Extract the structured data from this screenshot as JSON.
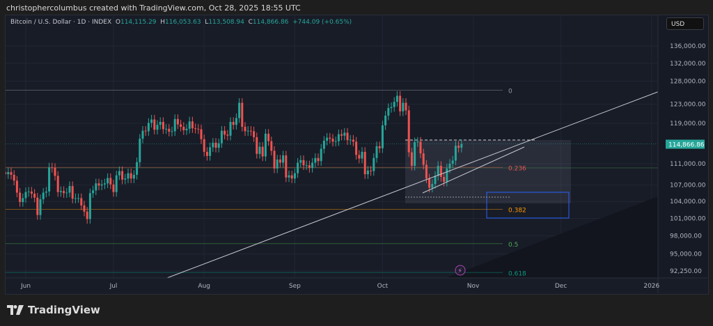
{
  "header": {
    "attribution": "christophercolumbus created with TradingView.com, Oct 28, 2025 18:55 UTC"
  },
  "legend": {
    "symbol": "Bitcoin / U.S. Dollar · 1D · INDEX",
    "open_label": "O",
    "open": "114,115.29",
    "high_label": "H",
    "high": "116,053.63",
    "low_label": "L",
    "low": "113,508.94",
    "close_label": "C",
    "close": "114,866.86",
    "change": "+744.09 (+0.65%)"
  },
  "currency_button": "USD",
  "footer": {
    "brand": "TradingView"
  },
  "colors": {
    "up": "#26a69a",
    "down": "#ef5350",
    "background": "#181c27",
    "price_tag": "#26a69a"
  },
  "chart_data": {
    "type": "candlestick",
    "y_scale": "log",
    "ylim": [
      92250,
      136000
    ],
    "y_ticks": [
      "136,000.00",
      "132,000.00",
      "128,000.00",
      "123,000.00",
      "119,000.00",
      "111,000.00",
      "107,000.00",
      "104,000.00",
      "101,000.00",
      "98,000.00",
      "95,000.00",
      "92,250.00"
    ],
    "y_tick_values": [
      136000,
      132000,
      128000,
      123000,
      119000,
      111000,
      107000,
      104000,
      101000,
      98000,
      95000,
      92250
    ],
    "x_ticks": [
      "Jun",
      "Jul",
      "Aug",
      "Sep",
      "Oct",
      "Nov",
      "Dec",
      "2026"
    ],
    "x_tick_dates": [
      "2025-06-01",
      "2025-07-01",
      "2025-08-01",
      "2025-09-01",
      "2025-10-01",
      "2025-11-01",
      "2025-12-01",
      "2026-01-01"
    ],
    "xlim": [
      "2025-05-24",
      "2026-01-03"
    ],
    "start_date": "2025-05-25",
    "closes": [
      109.0,
      109.4,
      108.9,
      107.8,
      105.6,
      103.9,
      104.6,
      105.7,
      105.8,
      105.4,
      104.7,
      101.6,
      104.4,
      105.6,
      105.8,
      110.3,
      110.2,
      108.7,
      105.7,
      105.9,
      105.5,
      105.6,
      106.8,
      104.5,
      104.6,
      104.6,
      103.3,
      102.2,
      100.9,
      105.5,
      106.0,
      107.3,
      106.9,
      107.1,
      107.3,
      108.3,
      107.1,
      105.7,
      108.8,
      109.6,
      108.0,
      108.2,
      109.2,
      108.2,
      108.9,
      111.3,
      115.9,
      117.5,
      117.4,
      119.1,
      119.8,
      117.7,
      118.7,
      119.3,
      117.8,
      117.9,
      117.3,
      117.4,
      119.9,
      118.8,
      118.3,
      117.6,
      117.9,
      119.4,
      118.0,
      117.9,
      117.8,
      115.8,
      113.3,
      112.5,
      114.2,
      115.1,
      114.1,
      115.0,
      117.5,
      116.7,
      116.5,
      119.3,
      118.7,
      120.1,
      123.3,
      118.3,
      117.4,
      117.5,
      117.4,
      116.2,
      112.9,
      114.3,
      112.4,
      116.9,
      115.4,
      113.5,
      110.1,
      111.8,
      111.2,
      112.6,
      108.4,
      108.8,
      108.2,
      109.2,
      111.2,
      111.7,
      110.7,
      110.7,
      110.2,
      111.2,
      112.1,
      111.5,
      113.9,
      115.5,
      116.1,
      115.9,
      115.3,
      115.4,
      116.8,
      116.5,
      117.1,
      115.6,
      115.7,
      115.3,
      112.7,
      112.0,
      113.3,
      109.0,
      109.7,
      109.6,
      112.1,
      114.4,
      114.0,
      118.6,
      120.6,
      122.2,
      122.4,
      123.5,
      124.8,
      121.5,
      123.3,
      121.7,
      113.2,
      110.6,
      115.2,
      115.3,
      113.0,
      110.8,
      108.2,
      106.5,
      107.2,
      108.7,
      110.6,
      108.5,
      107.6,
      110.1,
      111.0,
      111.6,
      114.5,
      114.1,
      114.87
    ],
    "close_units": "thousand USD",
    "last_price_label": "114,866.86",
    "fib_levels": [
      {
        "label": "0",
        "price": 126000,
        "color": "#9598a1"
      },
      {
        "label": "0.236",
        "price": 110300,
        "color": "#ef5350"
      },
      {
        "label": "0.382",
        "price": 102600,
        "color": "#ff9800"
      },
      {
        "label": "0.5",
        "price": 96700,
        "color": "#4caf50"
      },
      {
        "label": "0.618",
        "price": 92000,
        "color": "#089981"
      }
    ]
  }
}
